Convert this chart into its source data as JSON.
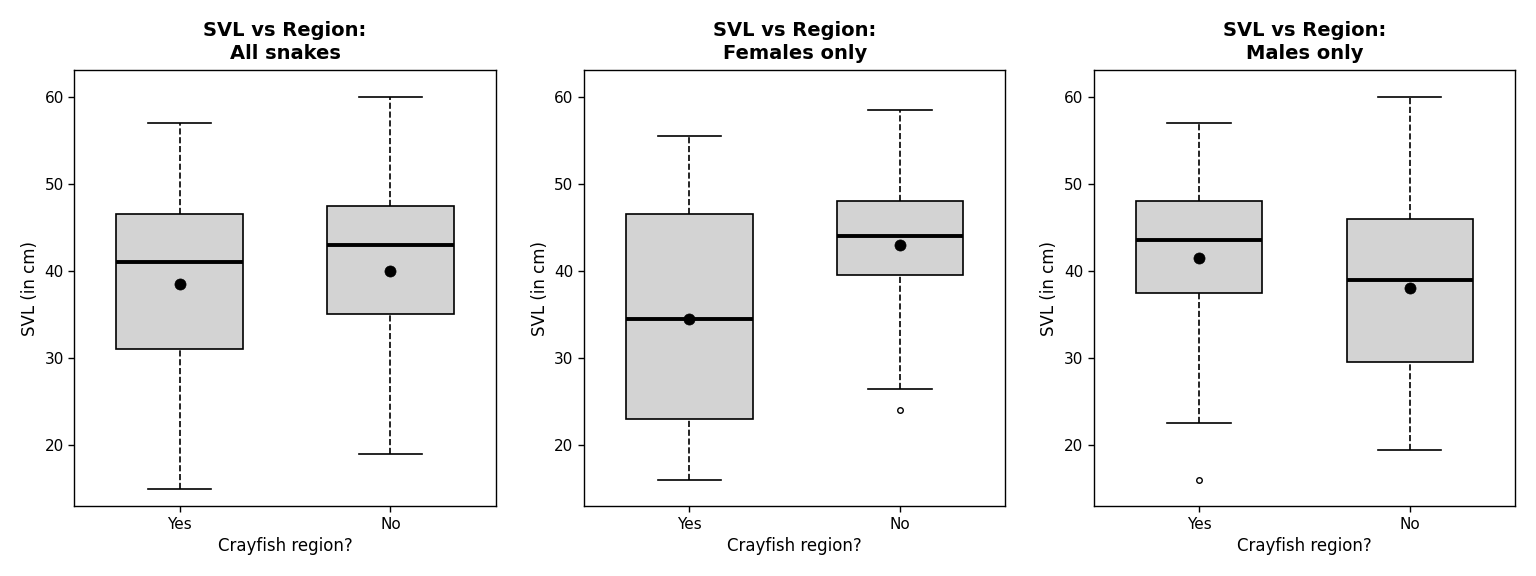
{
  "panels": [
    {
      "title": "SVL vs Region:\nAll snakes",
      "groups": [
        "Yes",
        "No"
      ],
      "boxes": [
        {
          "whislo": 15,
          "q1": 31,
          "med": 41,
          "q3": 46.5,
          "whishi": 57,
          "fliers": [],
          "mean": 38.5
        },
        {
          "whislo": 19,
          "q1": 35,
          "med": 43,
          "q3": 47.5,
          "whishi": 60,
          "fliers": [],
          "mean": 40
        }
      ]
    },
    {
      "title": "SVL vs Region:\nFemales only",
      "groups": [
        "Yes",
        "No"
      ],
      "boxes": [
        {
          "whislo": 16,
          "q1": 23,
          "med": 34.5,
          "q3": 46.5,
          "whishi": 55.5,
          "fliers": [],
          "mean": 34.5
        },
        {
          "whislo": 26.5,
          "q1": 39.5,
          "med": 44,
          "q3": 48,
          "whishi": 58.5,
          "fliers": [
            24
          ],
          "mean": 43
        }
      ]
    },
    {
      "title": "SVL vs Region:\nMales only",
      "groups": [
        "Yes",
        "No"
      ],
      "boxes": [
        {
          "whislo": 22.5,
          "q1": 37.5,
          "med": 43.5,
          "q3": 48,
          "whishi": 57,
          "fliers": [
            16
          ],
          "mean": 41.5
        },
        {
          "whislo": 19.5,
          "q1": 29.5,
          "med": 39,
          "q3": 46,
          "whishi": 60,
          "fliers": [],
          "mean": 38
        }
      ]
    }
  ],
  "ylabel": "SVL (in cm)",
  "xlabel": "Crayfish region?",
  "ylim": [
    13,
    63
  ],
  "yticks": [
    20,
    30,
    40,
    50,
    60
  ],
  "box_color": "#d3d3d3",
  "median_color": "black",
  "mean_marker": "o",
  "mean_color": "black",
  "mean_size": 8,
  "title_fontsize": 14,
  "label_fontsize": 12,
  "tick_fontsize": 11,
  "box_width": 0.6,
  "positions": [
    1,
    2
  ],
  "xlim": [
    0.5,
    2.5
  ]
}
